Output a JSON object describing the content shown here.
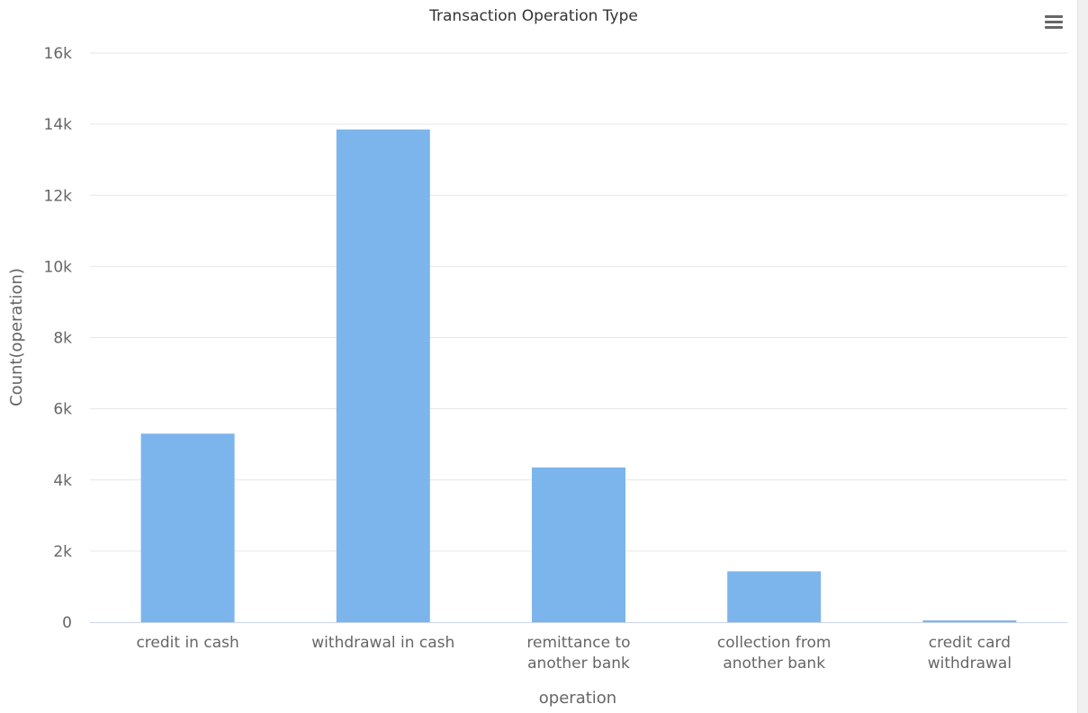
{
  "chart_data": {
    "type": "bar",
    "title": "Transaction Operation Type",
    "xlabel": "operation",
    "ylabel": "Count(operation)",
    "categories": [
      [
        "credit in cash"
      ],
      [
        "withdrawal in cash"
      ],
      [
        "remittance to",
        "another bank"
      ],
      [
        "collection from",
        "another bank"
      ],
      [
        "credit card",
        "withdrawal"
      ]
    ],
    "values": [
      5300,
      13850,
      4350,
      1430,
      50
    ],
    "ylim": [
      0,
      16000
    ],
    "yticks": [
      0,
      2000,
      4000,
      6000,
      8000,
      10000,
      12000,
      14000,
      16000
    ],
    "ytick_labels": [
      "0",
      "2k",
      "4k",
      "6k",
      "8k",
      "10k",
      "12k",
      "14k",
      "16k"
    ],
    "grid": true,
    "legend": "none",
    "colors": {
      "bar": "#7cb5ec",
      "grid": "#e6e6e6",
      "axis": "#ccd6eb",
      "text": "#333333",
      "tick_text": "#666666"
    }
  },
  "menu": {
    "icon": "hamburger-menu-icon"
  }
}
